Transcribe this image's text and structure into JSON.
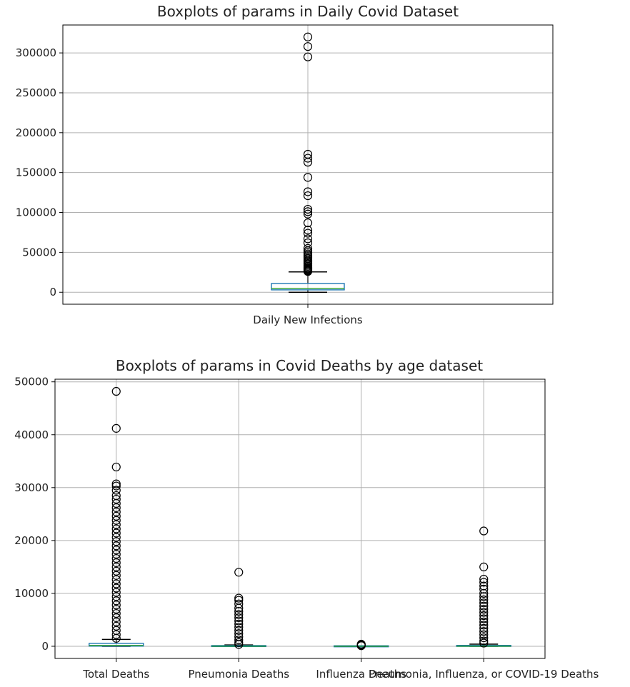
{
  "chart_data": [
    {
      "type": "box",
      "title": "Boxplots of params in Daily Covid Dataset",
      "xlabel": "",
      "ylabel": "",
      "ylim": [
        -15000,
        335000
      ],
      "yticks": [
        0,
        50000,
        100000,
        150000,
        200000,
        250000,
        300000
      ],
      "ytick_labels": [
        "0",
        "50000",
        "100000",
        "150000",
        "200000",
        "250000",
        "300000"
      ],
      "grid": true,
      "categories": [
        "Daily New Infections"
      ],
      "series": [
        {
          "name": "Daily New Infections",
          "whisker_low": 0,
          "q1": 3000,
          "median": 5000,
          "q3": 11000,
          "whisker_high": 25500,
          "outliers": [
            320000,
            308000,
            295000,
            173000,
            168000,
            163000,
            144000,
            126000,
            121000,
            104000,
            101000,
            98000,
            87000,
            78000,
            74000,
            67000,
            62000,
            55000,
            52000,
            50000,
            48000,
            46000,
            44000,
            42000,
            40000,
            38500,
            37000,
            35500,
            34000,
            32500,
            31000,
            30000,
            29000,
            28000,
            27000,
            26000
          ]
        }
      ]
    },
    {
      "type": "box",
      "title": "Boxplots of params in Covid Deaths by age dataset",
      "xlabel": "",
      "ylabel": "",
      "ylim": [
        -2300,
        50500
      ],
      "yticks": [
        0,
        10000,
        20000,
        30000,
        40000,
        50000
      ],
      "ytick_labels": [
        "0",
        "10000",
        "20000",
        "30000",
        "40000",
        "50000"
      ],
      "grid": true,
      "categories": [
        "Total Deaths",
        "Pneumonia Deaths",
        "Influenza Deaths",
        "Pneumonia, Influenza, or COVID-19 Deaths"
      ],
      "series": [
        {
          "name": "Total Deaths",
          "whisker_low": 0,
          "q1": 30,
          "median": 150,
          "q3": 550,
          "whisker_high": 1300,
          "outliers": [
            48200,
            41200,
            33900,
            30700,
            30300,
            29500,
            28500,
            27800,
            27000,
            26200,
            25400,
            24600,
            23800,
            23000,
            22200,
            21400,
            20600,
            19800,
            19000,
            18200,
            17400,
            16600,
            15800,
            15000,
            14200,
            13400,
            12600,
            11800,
            11000,
            10200,
            9400,
            8600,
            7800,
            7000,
            6200,
            5400,
            4600,
            3800,
            3000,
            2200,
            1500
          ]
        },
        {
          "name": "Pneumonia Deaths",
          "whisker_low": 0,
          "q1": 0,
          "median": 15,
          "q3": 80,
          "whisker_high": 250,
          "outliers": [
            14000,
            9100,
            8700,
            8000,
            7200,
            6600,
            6000,
            5400,
            4800,
            4200,
            3600,
            3000,
            2400,
            1800,
            1200,
            700,
            350
          ]
        },
        {
          "name": "Influenza Deaths",
          "whisker_low": 0,
          "q1": 0,
          "median": 0,
          "q3": 0,
          "whisker_high": 0,
          "outliers": [
            400,
            300,
            200,
            100
          ]
        },
        {
          "name": "Pneumonia, Influenza, or COVID-19 Deaths",
          "whisker_low": 0,
          "q1": 0,
          "median": 30,
          "q3": 150,
          "whisker_high": 400,
          "outliers": [
            21800,
            15000,
            12700,
            12100,
            11400,
            10800,
            10000,
            9400,
            8800,
            8200,
            7600,
            7000,
            6400,
            5800,
            5200,
            4600,
            4000,
            3400,
            2800,
            2200,
            1600,
            1000,
            600
          ]
        }
      ]
    }
  ]
}
